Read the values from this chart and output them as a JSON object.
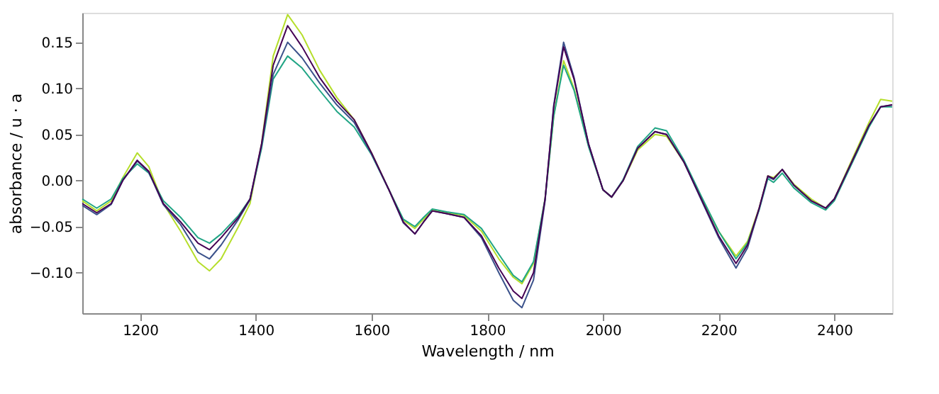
{
  "chart_data": {
    "type": "line",
    "xlabel": "Wavelength / nm",
    "ylabel": "absorbance / u · a",
    "x": [
      1100,
      1125,
      1150,
      1170,
      1195,
      1215,
      1240,
      1270,
      1300,
      1320,
      1340,
      1370,
      1390,
      1410,
      1430,
      1455,
      1480,
      1510,
      1540,
      1570,
      1600,
      1630,
      1655,
      1675,
      1690,
      1705,
      1730,
      1760,
      1790,
      1820,
      1845,
      1860,
      1880,
      1900,
      1915,
      1932,
      1950,
      1975,
      2000,
      2015,
      2035,
      2060,
      2090,
      2110,
      2140,
      2170,
      2200,
      2230,
      2250,
      2270,
      2285,
      2295,
      2310,
      2330,
      2360,
      2385,
      2400,
      2430,
      2460,
      2480,
      2500
    ],
    "series": [
      {
        "color": "#b5de2b",
        "values": [
          -0.022,
          -0.033,
          -0.022,
          0.003,
          0.03,
          0.015,
          -0.025,
          -0.055,
          -0.088,
          -0.098,
          -0.085,
          -0.05,
          -0.025,
          0.04,
          0.135,
          0.18,
          0.158,
          0.12,
          0.09,
          0.066,
          0.03,
          -0.01,
          -0.043,
          -0.052,
          -0.042,
          -0.032,
          -0.035,
          -0.038,
          -0.055,
          -0.085,
          -0.105,
          -0.112,
          -0.09,
          -0.02,
          0.07,
          0.13,
          0.1,
          0.038,
          -0.01,
          -0.018,
          0.0,
          0.033,
          0.05,
          0.048,
          0.02,
          -0.018,
          -0.055,
          -0.082,
          -0.066,
          -0.03,
          0.005,
          0.003,
          0.012,
          -0.004,
          -0.02,
          -0.03,
          -0.02,
          0.022,
          0.063,
          0.088,
          0.086
        ]
      },
      {
        "color": "#21a585",
        "values": [
          -0.02,
          -0.03,
          -0.02,
          0.002,
          0.018,
          0.008,
          -0.022,
          -0.04,
          -0.062,
          -0.068,
          -0.058,
          -0.038,
          -0.02,
          0.035,
          0.11,
          0.135,
          0.122,
          0.098,
          0.075,
          0.058,
          0.028,
          -0.01,
          -0.042,
          -0.05,
          -0.04,
          -0.031,
          -0.034,
          -0.037,
          -0.052,
          -0.08,
          -0.103,
          -0.11,
          -0.088,
          -0.02,
          0.07,
          0.125,
          0.098,
          0.037,
          -0.01,
          -0.018,
          0.001,
          0.037,
          0.057,
          0.054,
          0.022,
          -0.017,
          -0.055,
          -0.085,
          -0.068,
          -0.032,
          0.002,
          -0.002,
          0.008,
          -0.008,
          -0.024,
          -0.032,
          -0.022,
          0.018,
          0.058,
          0.08,
          0.08
        ]
      },
      {
        "color": "#3b528b",
        "values": [
          -0.027,
          -0.037,
          -0.026,
          0.0,
          0.021,
          0.009,
          -0.026,
          -0.048,
          -0.078,
          -0.085,
          -0.07,
          -0.042,
          -0.021,
          0.038,
          0.115,
          0.15,
          0.133,
          0.106,
          0.082,
          0.063,
          0.029,
          -0.01,
          -0.046,
          -0.058,
          -0.045,
          -0.033,
          -0.036,
          -0.04,
          -0.062,
          -0.1,
          -0.13,
          -0.138,
          -0.108,
          -0.022,
          0.082,
          0.15,
          0.112,
          0.04,
          -0.01,
          -0.018,
          0.0,
          0.035,
          0.053,
          0.05,
          0.02,
          -0.021,
          -0.062,
          -0.095,
          -0.073,
          -0.031,
          0.004,
          0.001,
          0.012,
          -0.005,
          -0.022,
          -0.03,
          -0.02,
          0.02,
          0.06,
          0.08,
          0.082
        ]
      },
      {
        "color": "#440154",
        "values": [
          -0.025,
          -0.035,
          -0.025,
          0.0,
          0.022,
          0.01,
          -0.025,
          -0.045,
          -0.068,
          -0.075,
          -0.062,
          -0.04,
          -0.02,
          0.04,
          0.125,
          0.168,
          0.145,
          0.112,
          0.086,
          0.066,
          0.03,
          -0.01,
          -0.045,
          -0.058,
          -0.045,
          -0.033,
          -0.036,
          -0.04,
          -0.06,
          -0.095,
          -0.12,
          -0.128,
          -0.1,
          -0.02,
          0.08,
          0.145,
          0.11,
          0.04,
          -0.01,
          -0.018,
          0.0,
          0.035,
          0.053,
          0.05,
          0.02,
          -0.02,
          -0.06,
          -0.09,
          -0.07,
          -0.03,
          0.005,
          0.002,
          0.012,
          -0.005,
          -0.022,
          -0.03,
          -0.02,
          0.02,
          0.06,
          0.08,
          0.082
        ]
      }
    ],
    "xlim": [
      1100,
      2500
    ],
    "xticks": [
      1200,
      1400,
      1600,
      1800,
      2000,
      2200,
      2400
    ],
    "ylim": [
      -0.144,
      0.182
    ],
    "yticks": [
      {
        "value": -0.1,
        "label": "−0.10"
      },
      {
        "value": -0.05,
        "label": "−0.05"
      },
      {
        "value": 0,
        "label": "0.00"
      },
      {
        "value": 0.05,
        "label": "0.05"
      },
      {
        "value": 0.1,
        "label": "0.10"
      },
      {
        "value": 0.15,
        "label": "0.15"
      }
    ],
    "grid": false,
    "legend": false,
    "marker": "none",
    "line_style": "solid"
  }
}
